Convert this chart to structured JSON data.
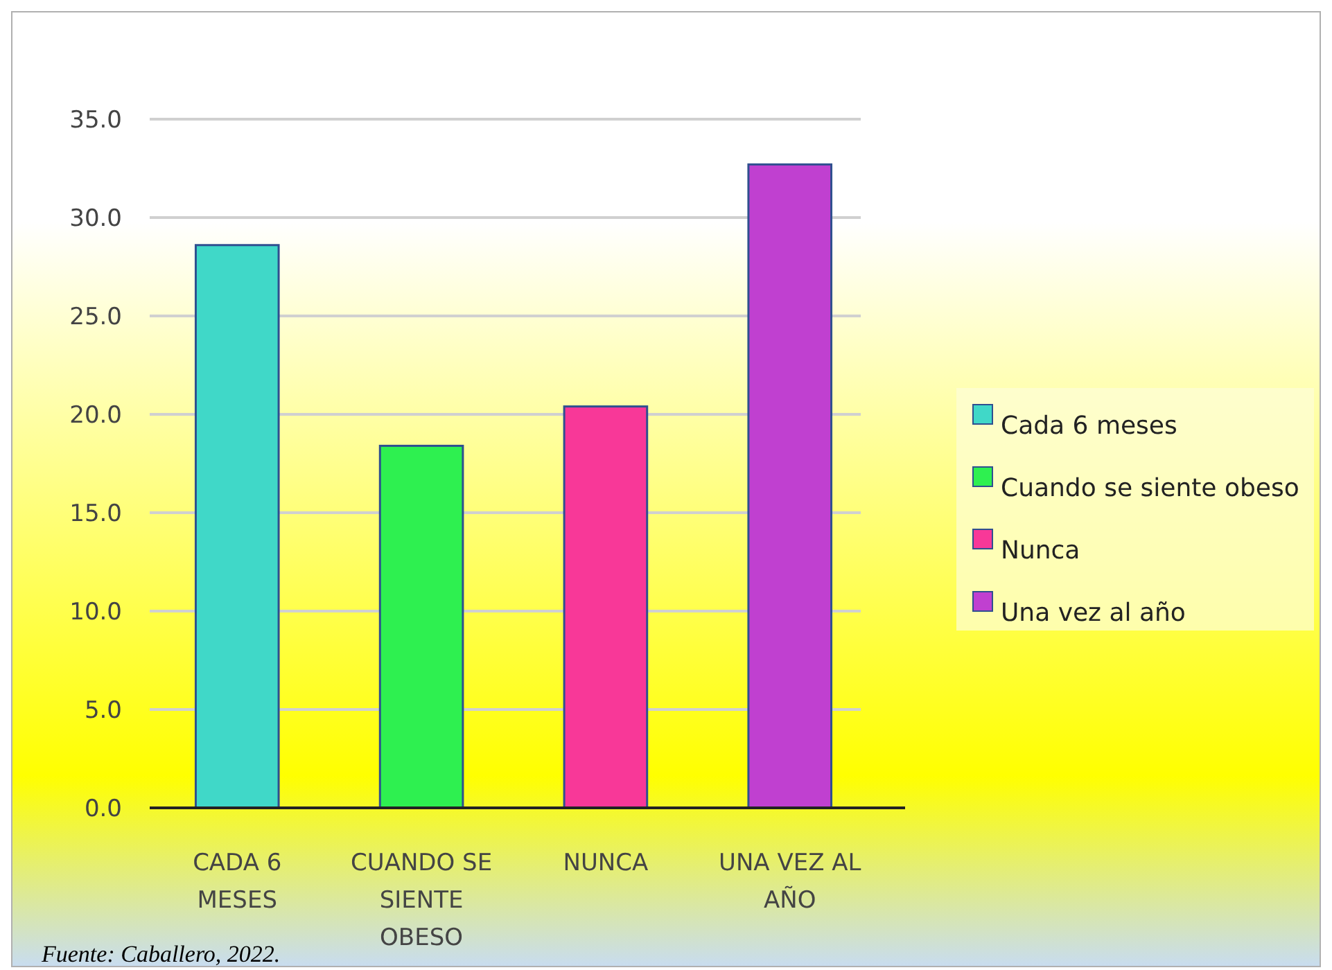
{
  "chart_data": {
    "type": "bar",
    "categories": [
      "CADA 6 MESES",
      "CUANDO SE SIENTE OBESO",
      "NUNCA",
      "UNA VEZ AL AÑO"
    ],
    "series": [
      {
        "name": "Cada 6 meses",
        "color": "#40d8c8",
        "values": [
          28.6,
          null,
          null,
          null
        ]
      },
      {
        "name": "Cuando se siente obeso",
        "color": "#2ef050",
        "values": [
          null,
          18.4,
          null,
          null
        ]
      },
      {
        "name": "Nunca",
        "color": "#f83898",
        "values": [
          null,
          null,
          20.4,
          null
        ]
      },
      {
        "name": "Una vez al año",
        "color": "#c040d0",
        "values": [
          null,
          null,
          null,
          32.7
        ]
      }
    ],
    "stacked": true,
    "ylim": [
      0,
      35
    ],
    "yticks": [
      {
        "value": 0,
        "label": "0.0"
      },
      {
        "value": 5,
        "label": "5.0"
      },
      {
        "value": 10,
        "label": "10.0"
      },
      {
        "value": 15,
        "label": "15.0"
      },
      {
        "value": 20,
        "label": "20.0"
      },
      {
        "value": 25,
        "label": "25.0"
      },
      {
        "value": 30,
        "label": "30.0"
      },
      {
        "value": 35,
        "label": "35.0"
      }
    ],
    "grid": "y",
    "legend": "right",
    "annotations": [
      "Fuente: Caballero, 2022."
    ]
  }
}
